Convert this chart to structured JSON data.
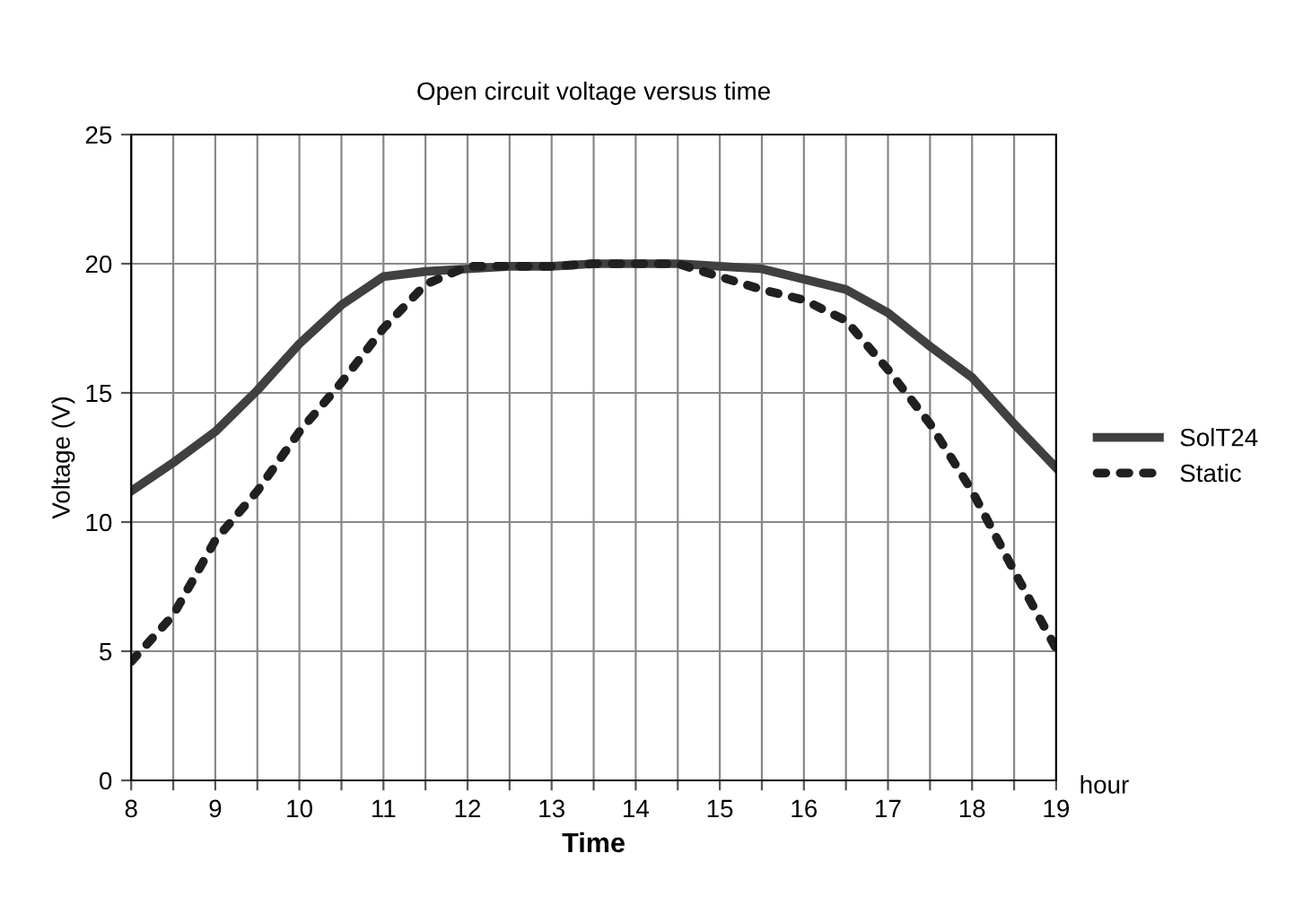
{
  "chart_data": {
    "type": "line",
    "title": "Open circuit voltage versus time",
    "xlabel": "Time",
    "ylabel": "Voltage (V)",
    "annotations": [
      "hour"
    ],
    "x": [
      8,
      8.5,
      9,
      9.5,
      10,
      10.5,
      11,
      11.5,
      12,
      12.5,
      13,
      13.5,
      14,
      14.5,
      15,
      15.5,
      16,
      16.5,
      17,
      17.5,
      18,
      18.5,
      19
    ],
    "series": [
      {
        "name": "SolT24",
        "color": "#404040",
        "line_style": "solid",
        "values": [
          11.2,
          12.3,
          13.5,
          15.1,
          16.9,
          18.4,
          19.5,
          19.7,
          19.8,
          19.9,
          19.9,
          20.0,
          20.0,
          20.0,
          19.9,
          19.8,
          19.4,
          19.0,
          18.1,
          16.8,
          15.6,
          13.8,
          12.1
        ]
      },
      {
        "name": "Static",
        "color": "#202020",
        "line_style": "dotted",
        "values": [
          4.6,
          6.4,
          9.3,
          11.2,
          13.5,
          15.4,
          17.5,
          19.2,
          19.9,
          19.9,
          19.9,
          20.0,
          20.0,
          20.0,
          19.5,
          19.0,
          18.6,
          17.8,
          15.9,
          13.8,
          11.2,
          8.1,
          5.1
        ]
      }
    ],
    "xlim": [
      8,
      19
    ],
    "ylim": [
      0,
      25
    ],
    "xticks": [
      8,
      {
        "value": 8.5,
        "label": null
      },
      9,
      {
        "value": 9.5,
        "label": null
      },
      10,
      {
        "value": 10.5,
        "label": null
      },
      11,
      {
        "value": 11.5,
        "label": null
      },
      12,
      {
        "value": 12.5,
        "label": null
      },
      13,
      {
        "value": 13.5,
        "label": null
      },
      14,
      {
        "value": 14.5,
        "label": null
      },
      15,
      {
        "value": 15.5,
        "label": null
      },
      16,
      {
        "value": 16.5,
        "label": null
      },
      17,
      {
        "value": 17.5,
        "label": null
      },
      18,
      {
        "value": 18.5,
        "label": null
      },
      19
    ],
    "yticks": [
      0,
      5,
      10,
      15,
      20,
      25
    ],
    "grid": true,
    "legend": "right",
    "marker": "none"
  }
}
